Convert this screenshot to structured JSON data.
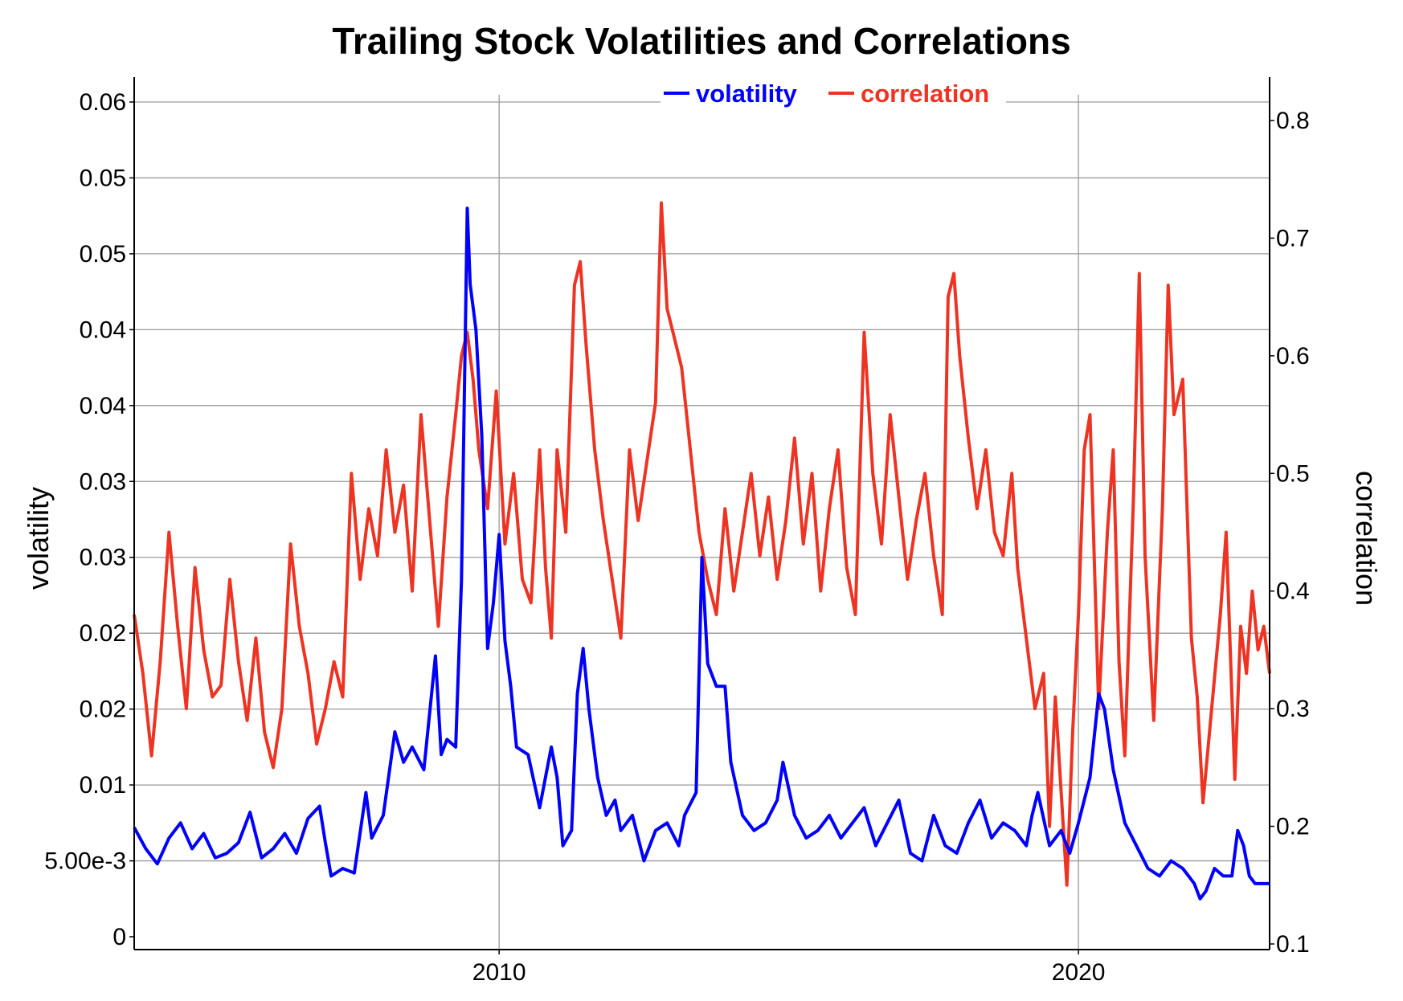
{
  "chart_data": {
    "type": "line",
    "title": "Trailing Stock Volatilities and Correlations",
    "xlabel": "",
    "ylabel_left": "volatility",
    "ylabel_right": "correlation",
    "xlim": [
      2003.7,
      2023.3
    ],
    "ylim_left": [
      0,
      0.055
    ],
    "ylim_right": [
      0.1,
      0.8
    ],
    "x_ticks": [
      {
        "value": 2010,
        "label": "2010"
      },
      {
        "value": 2020,
        "label": "2020"
      }
    ],
    "y_left_ticks": [
      {
        "value": 0,
        "label": "0"
      },
      {
        "value": 0.005,
        "label": "5.00e-3"
      },
      {
        "value": 0.01,
        "label": "0.01"
      },
      {
        "value": 0.015,
        "label": "0.02"
      },
      {
        "value": 0.02,
        "label": "0.02"
      },
      {
        "value": 0.025,
        "label": "0.03"
      },
      {
        "value": 0.03,
        "label": "0.03"
      },
      {
        "value": 0.035,
        "label": "0.04"
      },
      {
        "value": 0.04,
        "label": "0.04"
      },
      {
        "value": 0.045,
        "label": "0.05"
      },
      {
        "value": 0.05,
        "label": "0.05"
      },
      {
        "value": 0.055,
        "label": "0.06"
      }
    ],
    "y_right_ticks": [
      {
        "value": 0.1,
        "label": "0.1"
      },
      {
        "value": 0.2,
        "label": "0.2"
      },
      {
        "value": 0.3,
        "label": "0.3"
      },
      {
        "value": 0.4,
        "label": "0.4"
      },
      {
        "value": 0.5,
        "label": "0.5"
      },
      {
        "value": 0.6,
        "label": "0.6"
      },
      {
        "value": 0.7,
        "label": "0.7"
      },
      {
        "value": 0.8,
        "label": "0.8"
      }
    ],
    "grid": true,
    "legend_position": "top-center",
    "series": [
      {
        "name": "volatility",
        "axis": "left",
        "color": "#0000ff",
        "points": [
          [
            2003.7,
            0.0072
          ],
          [
            2003.9,
            0.0058
          ],
          [
            2004.1,
            0.0048
          ],
          [
            2004.3,
            0.0065
          ],
          [
            2004.5,
            0.0075
          ],
          [
            2004.7,
            0.0058
          ],
          [
            2004.9,
            0.0068
          ],
          [
            2005.1,
            0.0052
          ],
          [
            2005.3,
            0.0055
          ],
          [
            2005.5,
            0.0062
          ],
          [
            2005.7,
            0.0082
          ],
          [
            2005.9,
            0.0052
          ],
          [
            2006.1,
            0.0058
          ],
          [
            2006.3,
            0.0068
          ],
          [
            2006.5,
            0.0055
          ],
          [
            2006.7,
            0.0078
          ],
          [
            2006.9,
            0.0086
          ],
          [
            2007.0,
            0.0062
          ],
          [
            2007.1,
            0.004
          ],
          [
            2007.3,
            0.0045
          ],
          [
            2007.5,
            0.0042
          ],
          [
            2007.7,
            0.0095
          ],
          [
            2007.8,
            0.0065
          ],
          [
            2008.0,
            0.008
          ],
          [
            2008.2,
            0.0135
          ],
          [
            2008.35,
            0.0115
          ],
          [
            2008.5,
            0.0125
          ],
          [
            2008.7,
            0.011
          ],
          [
            2008.9,
            0.0185
          ],
          [
            2009.0,
            0.012
          ],
          [
            2009.1,
            0.013
          ],
          [
            2009.25,
            0.0125
          ],
          [
            2009.35,
            0.0235
          ],
          [
            2009.45,
            0.048
          ],
          [
            2009.5,
            0.043
          ],
          [
            2009.6,
            0.04
          ],
          [
            2009.7,
            0.033
          ],
          [
            2009.8,
            0.019
          ],
          [
            2009.9,
            0.022
          ],
          [
            2010.0,
            0.0265
          ],
          [
            2010.1,
            0.0195
          ],
          [
            2010.2,
            0.0165
          ],
          [
            2010.3,
            0.0125
          ],
          [
            2010.5,
            0.012
          ],
          [
            2010.7,
            0.0085
          ],
          [
            2010.9,
            0.0125
          ],
          [
            2011.0,
            0.0105
          ],
          [
            2011.1,
            0.006
          ],
          [
            2011.25,
            0.007
          ],
          [
            2011.35,
            0.016
          ],
          [
            2011.45,
            0.019
          ],
          [
            2011.55,
            0.015
          ],
          [
            2011.7,
            0.0105
          ],
          [
            2011.85,
            0.008
          ],
          [
            2012.0,
            0.009
          ],
          [
            2012.1,
            0.007
          ],
          [
            2012.3,
            0.008
          ],
          [
            2012.5,
            0.005
          ],
          [
            2012.7,
            0.007
          ],
          [
            2012.9,
            0.0075
          ],
          [
            2013.1,
            0.006
          ],
          [
            2013.2,
            0.008
          ],
          [
            2013.4,
            0.0095
          ],
          [
            2013.5,
            0.025
          ],
          [
            2013.6,
            0.018
          ],
          [
            2013.75,
            0.0165
          ],
          [
            2013.9,
            0.0165
          ],
          [
            2014.0,
            0.0115
          ],
          [
            2014.2,
            0.008
          ],
          [
            2014.4,
            0.007
          ],
          [
            2014.6,
            0.0075
          ],
          [
            2014.8,
            0.009
          ],
          [
            2014.9,
            0.0115
          ],
          [
            2015.1,
            0.008
          ],
          [
            2015.3,
            0.0065
          ],
          [
            2015.5,
            0.007
          ],
          [
            2015.7,
            0.008
          ],
          [
            2015.9,
            0.0065
          ],
          [
            2016.1,
            0.0075
          ],
          [
            2016.3,
            0.0085
          ],
          [
            2016.5,
            0.006
          ],
          [
            2016.7,
            0.0075
          ],
          [
            2016.9,
            0.009
          ],
          [
            2017.1,
            0.0055
          ],
          [
            2017.3,
            0.005
          ],
          [
            2017.5,
            0.008
          ],
          [
            2017.7,
            0.006
          ],
          [
            2017.9,
            0.0055
          ],
          [
            2018.1,
            0.0075
          ],
          [
            2018.3,
            0.009
          ],
          [
            2018.5,
            0.0065
          ],
          [
            2018.7,
            0.0075
          ],
          [
            2018.9,
            0.007
          ],
          [
            2019.1,
            0.006
          ],
          [
            2019.2,
            0.008
          ],
          [
            2019.3,
            0.0095
          ],
          [
            2019.5,
            0.006
          ],
          [
            2019.7,
            0.007
          ],
          [
            2019.85,
            0.0055
          ],
          [
            2020.0,
            0.0075
          ],
          [
            2020.2,
            0.0105
          ],
          [
            2020.35,
            0.016
          ],
          [
            2020.45,
            0.015
          ],
          [
            2020.6,
            0.011
          ],
          [
            2020.8,
            0.0075
          ],
          [
            2021.0,
            0.006
          ],
          [
            2021.2,
            0.0045
          ],
          [
            2021.4,
            0.004
          ],
          [
            2021.6,
            0.005
          ],
          [
            2021.8,
            0.0045
          ],
          [
            2021.9,
            0.004
          ],
          [
            2022.0,
            0.0035
          ],
          [
            2022.1,
            0.0025
          ],
          [
            2022.2,
            0.003
          ],
          [
            2022.35,
            0.0045
          ],
          [
            2022.5,
            0.004
          ],
          [
            2022.65,
            0.004
          ],
          [
            2022.75,
            0.007
          ],
          [
            2022.85,
            0.006
          ],
          [
            2022.95,
            0.004
          ],
          [
            2023.05,
            0.0035
          ],
          [
            2023.2,
            0.0035
          ],
          [
            2023.3,
            0.0035
          ]
        ]
      },
      {
        "name": "correlation",
        "axis": "right",
        "color": "#ee3322",
        "points": [
          [
            2003.7,
            0.38
          ],
          [
            2003.85,
            0.33
          ],
          [
            2004.0,
            0.26
          ],
          [
            2004.15,
            0.34
          ],
          [
            2004.3,
            0.45
          ],
          [
            2004.45,
            0.37
          ],
          [
            2004.6,
            0.3
          ],
          [
            2004.75,
            0.42
          ],
          [
            2004.9,
            0.35
          ],
          [
            2005.05,
            0.31
          ],
          [
            2005.2,
            0.32
          ],
          [
            2005.35,
            0.41
          ],
          [
            2005.5,
            0.34
          ],
          [
            2005.65,
            0.29
          ],
          [
            2005.8,
            0.36
          ],
          [
            2005.95,
            0.28
          ],
          [
            2006.1,
            0.25
          ],
          [
            2006.25,
            0.3
          ],
          [
            2006.4,
            0.44
          ],
          [
            2006.55,
            0.37
          ],
          [
            2006.7,
            0.33
          ],
          [
            2006.85,
            0.27
          ],
          [
            2007.0,
            0.3
          ],
          [
            2007.15,
            0.34
          ],
          [
            2007.3,
            0.31
          ],
          [
            2007.45,
            0.5
          ],
          [
            2007.6,
            0.41
          ],
          [
            2007.75,
            0.47
          ],
          [
            2007.9,
            0.43
          ],
          [
            2008.05,
            0.52
          ],
          [
            2008.2,
            0.45
          ],
          [
            2008.35,
            0.49
          ],
          [
            2008.5,
            0.4
          ],
          [
            2008.65,
            0.55
          ],
          [
            2008.8,
            0.46
          ],
          [
            2008.95,
            0.37
          ],
          [
            2009.1,
            0.48
          ],
          [
            2009.25,
            0.55
          ],
          [
            2009.35,
            0.6
          ],
          [
            2009.45,
            0.62
          ],
          [
            2009.55,
            0.58
          ],
          [
            2009.65,
            0.52
          ],
          [
            2009.8,
            0.47
          ],
          [
            2009.95,
            0.57
          ],
          [
            2010.1,
            0.44
          ],
          [
            2010.25,
            0.5
          ],
          [
            2010.4,
            0.41
          ],
          [
            2010.55,
            0.39
          ],
          [
            2010.7,
            0.52
          ],
          [
            2010.8,
            0.42
          ],
          [
            2010.9,
            0.36
          ],
          [
            2011.0,
            0.52
          ],
          [
            2011.15,
            0.45
          ],
          [
            2011.3,
            0.66
          ],
          [
            2011.4,
            0.68
          ],
          [
            2011.5,
            0.61
          ],
          [
            2011.65,
            0.52
          ],
          [
            2011.8,
            0.46
          ],
          [
            2011.95,
            0.41
          ],
          [
            2012.1,
            0.36
          ],
          [
            2012.25,
            0.52
          ],
          [
            2012.4,
            0.46
          ],
          [
            2012.55,
            0.51
          ],
          [
            2012.7,
            0.56
          ],
          [
            2012.8,
            0.73
          ],
          [
            2012.9,
            0.64
          ],
          [
            2013.0,
            0.62
          ],
          [
            2013.15,
            0.59
          ],
          [
            2013.3,
            0.52
          ],
          [
            2013.45,
            0.45
          ],
          [
            2013.6,
            0.41
          ],
          [
            2013.75,
            0.38
          ],
          [
            2013.9,
            0.47
          ],
          [
            2014.05,
            0.4
          ],
          [
            2014.2,
            0.45
          ],
          [
            2014.35,
            0.5
          ],
          [
            2014.5,
            0.43
          ],
          [
            2014.65,
            0.48
          ],
          [
            2014.8,
            0.41
          ],
          [
            2014.95,
            0.46
          ],
          [
            2015.1,
            0.53
          ],
          [
            2015.25,
            0.44
          ],
          [
            2015.4,
            0.5
          ],
          [
            2015.55,
            0.4
          ],
          [
            2015.7,
            0.47
          ],
          [
            2015.85,
            0.52
          ],
          [
            2016.0,
            0.42
          ],
          [
            2016.15,
            0.38
          ],
          [
            2016.3,
            0.62
          ],
          [
            2016.45,
            0.5
          ],
          [
            2016.6,
            0.44
          ],
          [
            2016.75,
            0.55
          ],
          [
            2016.9,
            0.48
          ],
          [
            2017.05,
            0.41
          ],
          [
            2017.2,
            0.46
          ],
          [
            2017.35,
            0.5
          ],
          [
            2017.5,
            0.43
          ],
          [
            2017.65,
            0.38
          ],
          [
            2017.75,
            0.65
          ],
          [
            2017.85,
            0.67
          ],
          [
            2017.95,
            0.6
          ],
          [
            2018.1,
            0.53
          ],
          [
            2018.25,
            0.47
          ],
          [
            2018.4,
            0.52
          ],
          [
            2018.55,
            0.45
          ],
          [
            2018.7,
            0.43
          ],
          [
            2018.85,
            0.5
          ],
          [
            2018.95,
            0.42
          ],
          [
            2019.1,
            0.36
          ],
          [
            2019.25,
            0.3
          ],
          [
            2019.4,
            0.33
          ],
          [
            2019.5,
            0.2
          ],
          [
            2019.6,
            0.31
          ],
          [
            2019.7,
            0.23
          ],
          [
            2019.8,
            0.15
          ],
          [
            2019.9,
            0.28
          ],
          [
            2020.0,
            0.38
          ],
          [
            2020.1,
            0.52
          ],
          [
            2020.2,
            0.55
          ],
          [
            2020.35,
            0.3
          ],
          [
            2020.5,
            0.45
          ],
          [
            2020.6,
            0.52
          ],
          [
            2020.7,
            0.34
          ],
          [
            2020.8,
            0.26
          ],
          [
            2020.95,
            0.48
          ],
          [
            2021.05,
            0.67
          ],
          [
            2021.15,
            0.43
          ],
          [
            2021.3,
            0.29
          ],
          [
            2021.45,
            0.47
          ],
          [
            2021.55,
            0.66
          ],
          [
            2021.65,
            0.55
          ],
          [
            2021.8,
            0.58
          ],
          [
            2021.95,
            0.36
          ],
          [
            2022.05,
            0.31
          ],
          [
            2022.15,
            0.22
          ],
          [
            2022.3,
            0.3
          ],
          [
            2022.45,
            0.38
          ],
          [
            2022.55,
            0.45
          ],
          [
            2022.7,
            0.24
          ],
          [
            2022.8,
            0.37
          ],
          [
            2022.9,
            0.33
          ],
          [
            2023.0,
            0.4
          ],
          [
            2023.1,
            0.35
          ],
          [
            2023.2,
            0.37
          ],
          [
            2023.3,
            0.33
          ]
        ]
      }
    ]
  }
}
